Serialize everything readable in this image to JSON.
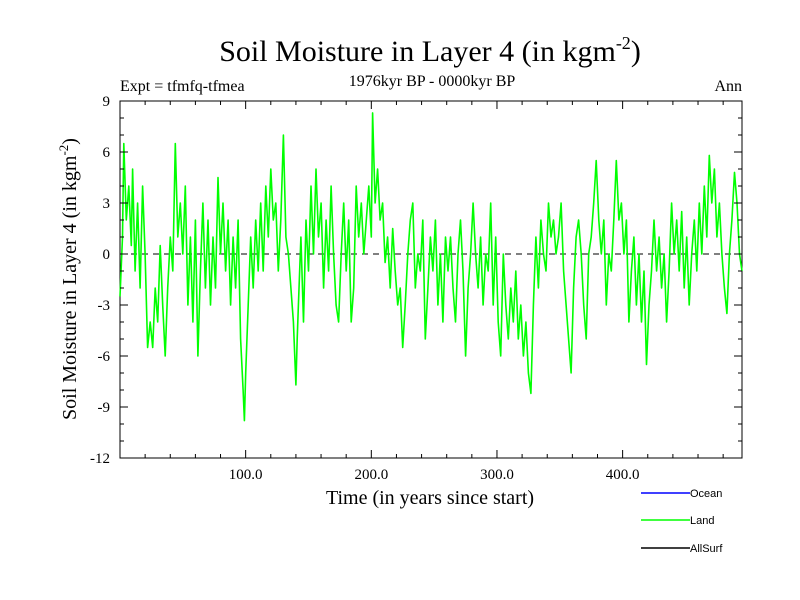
{
  "chart_data": {
    "type": "line",
    "title": "Soil Moisture in Layer 4 (in kgm",
    "title_sup": "-2",
    "title_close": ")",
    "subtitle": "1976kyr BP - 0000kyr BP",
    "expt_label": "Expt = tfmfq-tfmea",
    "season_label": "Ann",
    "xlabel": "Time (in years since start)",
    "ylabel": "Soil Moisture in Layer 4 (in kgm",
    "ylabel_sup": "-2",
    "ylabel_close": ")",
    "xlim": [
      0,
      495
    ],
    "ylim": [
      -12,
      9
    ],
    "x_ticks": [
      100,
      200,
      300,
      400
    ],
    "x_tick_labels": [
      "100.0",
      "200.0",
      "300.0",
      "400.0"
    ],
    "y_ticks": [
      -12,
      -9,
      -6,
      -3,
      0,
      3,
      6,
      9
    ],
    "y_tick_labels": [
      "-12",
      "-9",
      "-6",
      "-3",
      "0",
      "3",
      "6",
      "9"
    ],
    "zero_line": 0,
    "legend_position": "bottom-right",
    "legend": [
      {
        "name": "Ocean",
        "color": "#0000ff"
      },
      {
        "name": "Land",
        "color": "#00ff00"
      },
      {
        "name": "AllSurf",
        "color": "#000000"
      }
    ],
    "series": [
      {
        "name": "Land",
        "color": "#00ff00",
        "knots": [
          [
            0,
            -2.5
          ],
          [
            2,
            1
          ],
          [
            3,
            6.5
          ],
          [
            5,
            2
          ],
          [
            7,
            4
          ],
          [
            9,
            0.5
          ],
          [
            10,
            5
          ],
          [
            12,
            -1
          ],
          [
            14,
            3
          ],
          [
            16,
            -2
          ],
          [
            18,
            4
          ],
          [
            20,
            0
          ],
          [
            22,
            -5.5
          ],
          [
            24,
            -4
          ],
          [
            26,
            -5.5
          ],
          [
            28,
            -2
          ],
          [
            30,
            -4
          ],
          [
            32,
            0.5
          ],
          [
            34,
            -3
          ],
          [
            36,
            -6
          ],
          [
            38,
            -2
          ],
          [
            40,
            1
          ],
          [
            42,
            -1
          ],
          [
            44,
            6.5
          ],
          [
            46,
            1
          ],
          [
            48,
            3
          ],
          [
            50,
            0
          ],
          [
            52,
            4
          ],
          [
            54,
            -3
          ],
          [
            56,
            1
          ],
          [
            58,
            -4
          ],
          [
            60,
            2
          ],
          [
            62,
            -6
          ],
          [
            64,
            -1
          ],
          [
            66,
            3
          ],
          [
            68,
            -2
          ],
          [
            70,
            2
          ],
          [
            72,
            -3
          ],
          [
            74,
            1
          ],
          [
            76,
            -2
          ],
          [
            78,
            4.5
          ],
          [
            80,
            0
          ],
          [
            82,
            3
          ],
          [
            84,
            -1
          ],
          [
            86,
            2
          ],
          [
            88,
            -3
          ],
          [
            90,
            1
          ],
          [
            92,
            -2
          ],
          [
            94,
            2
          ],
          [
            96,
            -5
          ],
          [
            98,
            -8
          ],
          [
            99,
            -9.8
          ],
          [
            100,
            -7
          ],
          [
            102,
            -3
          ],
          [
            104,
            1
          ],
          [
            106,
            -2
          ],
          [
            108,
            2
          ],
          [
            110,
            -1
          ],
          [
            112,
            3
          ],
          [
            114,
            -1
          ],
          [
            116,
            4
          ],
          [
            118,
            1
          ],
          [
            120,
            5
          ],
          [
            122,
            2
          ],
          [
            124,
            3
          ],
          [
            126,
            -1
          ],
          [
            128,
            2
          ],
          [
            130,
            7
          ],
          [
            132,
            1
          ],
          [
            134,
            0
          ],
          [
            136,
            -2
          ],
          [
            138,
            -4
          ],
          [
            140,
            -7.7
          ],
          [
            141,
            -5
          ],
          [
            142,
            -3
          ],
          [
            144,
            1
          ],
          [
            146,
            -4
          ],
          [
            148,
            2
          ],
          [
            150,
            -1
          ],
          [
            152,
            4
          ],
          [
            154,
            0
          ],
          [
            156,
            5
          ],
          [
            158,
            1
          ],
          [
            160,
            3
          ],
          [
            162,
            -2
          ],
          [
            164,
            2
          ],
          [
            166,
            -1
          ],
          [
            168,
            4
          ],
          [
            170,
            0
          ],
          [
            172,
            -3
          ],
          [
            174,
            -4
          ],
          [
            176,
            0
          ],
          [
            178,
            3
          ],
          [
            180,
            -1
          ],
          [
            182,
            2
          ],
          [
            184,
            -4
          ],
          [
            186,
            -2
          ],
          [
            188,
            4
          ],
          [
            190,
            1
          ],
          [
            192,
            3
          ],
          [
            194,
            0
          ],
          [
            196,
            2
          ],
          [
            198,
            4
          ],
          [
            200,
            1
          ],
          [
            201,
            8.3
          ],
          [
            203,
            3
          ],
          [
            205,
            5
          ],
          [
            207,
            2
          ],
          [
            209,
            3
          ],
          [
            211,
            -0.5
          ],
          [
            213,
            1
          ],
          [
            215,
            -2
          ],
          [
            217,
            1.5
          ],
          [
            219,
            -1
          ],
          [
            221,
            -3
          ],
          [
            223,
            -2
          ],
          [
            225,
            -5.5
          ],
          [
            227,
            -3
          ],
          [
            229,
            0
          ],
          [
            231,
            2
          ],
          [
            233,
            3
          ],
          [
            235,
            -2
          ],
          [
            237,
            0
          ],
          [
            239,
            -1
          ],
          [
            241,
            2
          ],
          [
            243,
            -5
          ],
          [
            245,
            -2
          ],
          [
            247,
            1
          ],
          [
            249,
            -1
          ],
          [
            251,
            2
          ],
          [
            253,
            -3
          ],
          [
            255,
            0
          ],
          [
            257,
            -4
          ],
          [
            259,
            1
          ],
          [
            261,
            -1
          ],
          [
            263,
            1
          ],
          [
            265,
            -2
          ],
          [
            267,
            -4
          ],
          [
            269,
            0
          ],
          [
            271,
            2
          ],
          [
            273,
            -1
          ],
          [
            275,
            -6
          ],
          [
            277,
            -2
          ],
          [
            279,
            0
          ],
          [
            281,
            3
          ],
          [
            283,
            0
          ],
          [
            285,
            -2
          ],
          [
            287,
            1
          ],
          [
            289,
            -3
          ],
          [
            291,
            0
          ],
          [
            293,
            -1
          ],
          [
            295,
            3
          ],
          [
            297,
            -3
          ],
          [
            299,
            1
          ],
          [
            301,
            -4
          ],
          [
            303,
            -6
          ],
          [
            305,
            0
          ],
          [
            307,
            -3
          ],
          [
            309,
            -5
          ],
          [
            311,
            -2
          ],
          [
            313,
            -4
          ],
          [
            315,
            -1
          ],
          [
            317,
            -5
          ],
          [
            319,
            -3
          ],
          [
            321,
            -6
          ],
          [
            323,
            -4
          ],
          [
            325,
            -7
          ],
          [
            327,
            -8.2
          ],
          [
            329,
            -3
          ],
          [
            331,
            1
          ],
          [
            333,
            -2
          ],
          [
            335,
            2
          ],
          [
            337,
            0
          ],
          [
            339,
            -1
          ],
          [
            341,
            3
          ],
          [
            343,
            1
          ],
          [
            345,
            2
          ],
          [
            347,
            0
          ],
          [
            349,
            1
          ],
          [
            351,
            3
          ],
          [
            353,
            -1
          ],
          [
            355,
            -3
          ],
          [
            357,
            -5
          ],
          [
            359,
            -7
          ],
          [
            361,
            -2
          ],
          [
            363,
            1
          ],
          [
            365,
            2
          ],
          [
            367,
            0
          ],
          [
            369,
            -3
          ],
          [
            371,
            -5
          ],
          [
            373,
            0
          ],
          [
            375,
            1
          ],
          [
            377,
            3
          ],
          [
            379,
            5.5
          ],
          [
            381,
            2
          ],
          [
            383,
            0
          ],
          [
            385,
            2
          ],
          [
            387,
            -3
          ],
          [
            389,
            0
          ],
          [
            391,
            -1
          ],
          [
            393,
            2
          ],
          [
            395,
            5.5
          ],
          [
            397,
            2
          ],
          [
            399,
            3
          ],
          [
            401,
            0
          ],
          [
            403,
            2
          ],
          [
            405,
            -4
          ],
          [
            407,
            -1
          ],
          [
            409,
            1
          ],
          [
            411,
            -3
          ],
          [
            413,
            0
          ],
          [
            415,
            -4
          ],
          [
            417,
            -1
          ],
          [
            419,
            -6.5
          ],
          [
            421,
            -3
          ],
          [
            423,
            -1
          ],
          [
            425,
            2
          ],
          [
            427,
            -1
          ],
          [
            429,
            1
          ],
          [
            431,
            -2
          ],
          [
            433,
            0
          ],
          [
            435,
            -4
          ],
          [
            437,
            -1
          ],
          [
            439,
            3
          ],
          [
            441,
            0
          ],
          [
            443,
            2
          ],
          [
            445,
            -1
          ],
          [
            447,
            2.5
          ],
          [
            449,
            -2
          ],
          [
            451,
            1
          ],
          [
            453,
            -3
          ],
          [
            455,
            0
          ],
          [
            457,
            2
          ],
          [
            459,
            -1
          ],
          [
            461,
            3
          ],
          [
            463,
            0
          ],
          [
            465,
            4
          ],
          [
            467,
            1
          ],
          [
            469,
            5.8
          ],
          [
            471,
            3
          ],
          [
            473,
            5
          ],
          [
            475,
            1
          ],
          [
            477,
            3
          ],
          [
            479,
            0
          ],
          [
            481,
            -2
          ],
          [
            483,
            -3.5
          ],
          [
            485,
            0
          ],
          [
            487,
            2
          ],
          [
            489,
            4.8
          ],
          [
            491,
            3
          ],
          [
            493,
            0
          ],
          [
            495,
            -1
          ]
        ]
      }
    ]
  }
}
